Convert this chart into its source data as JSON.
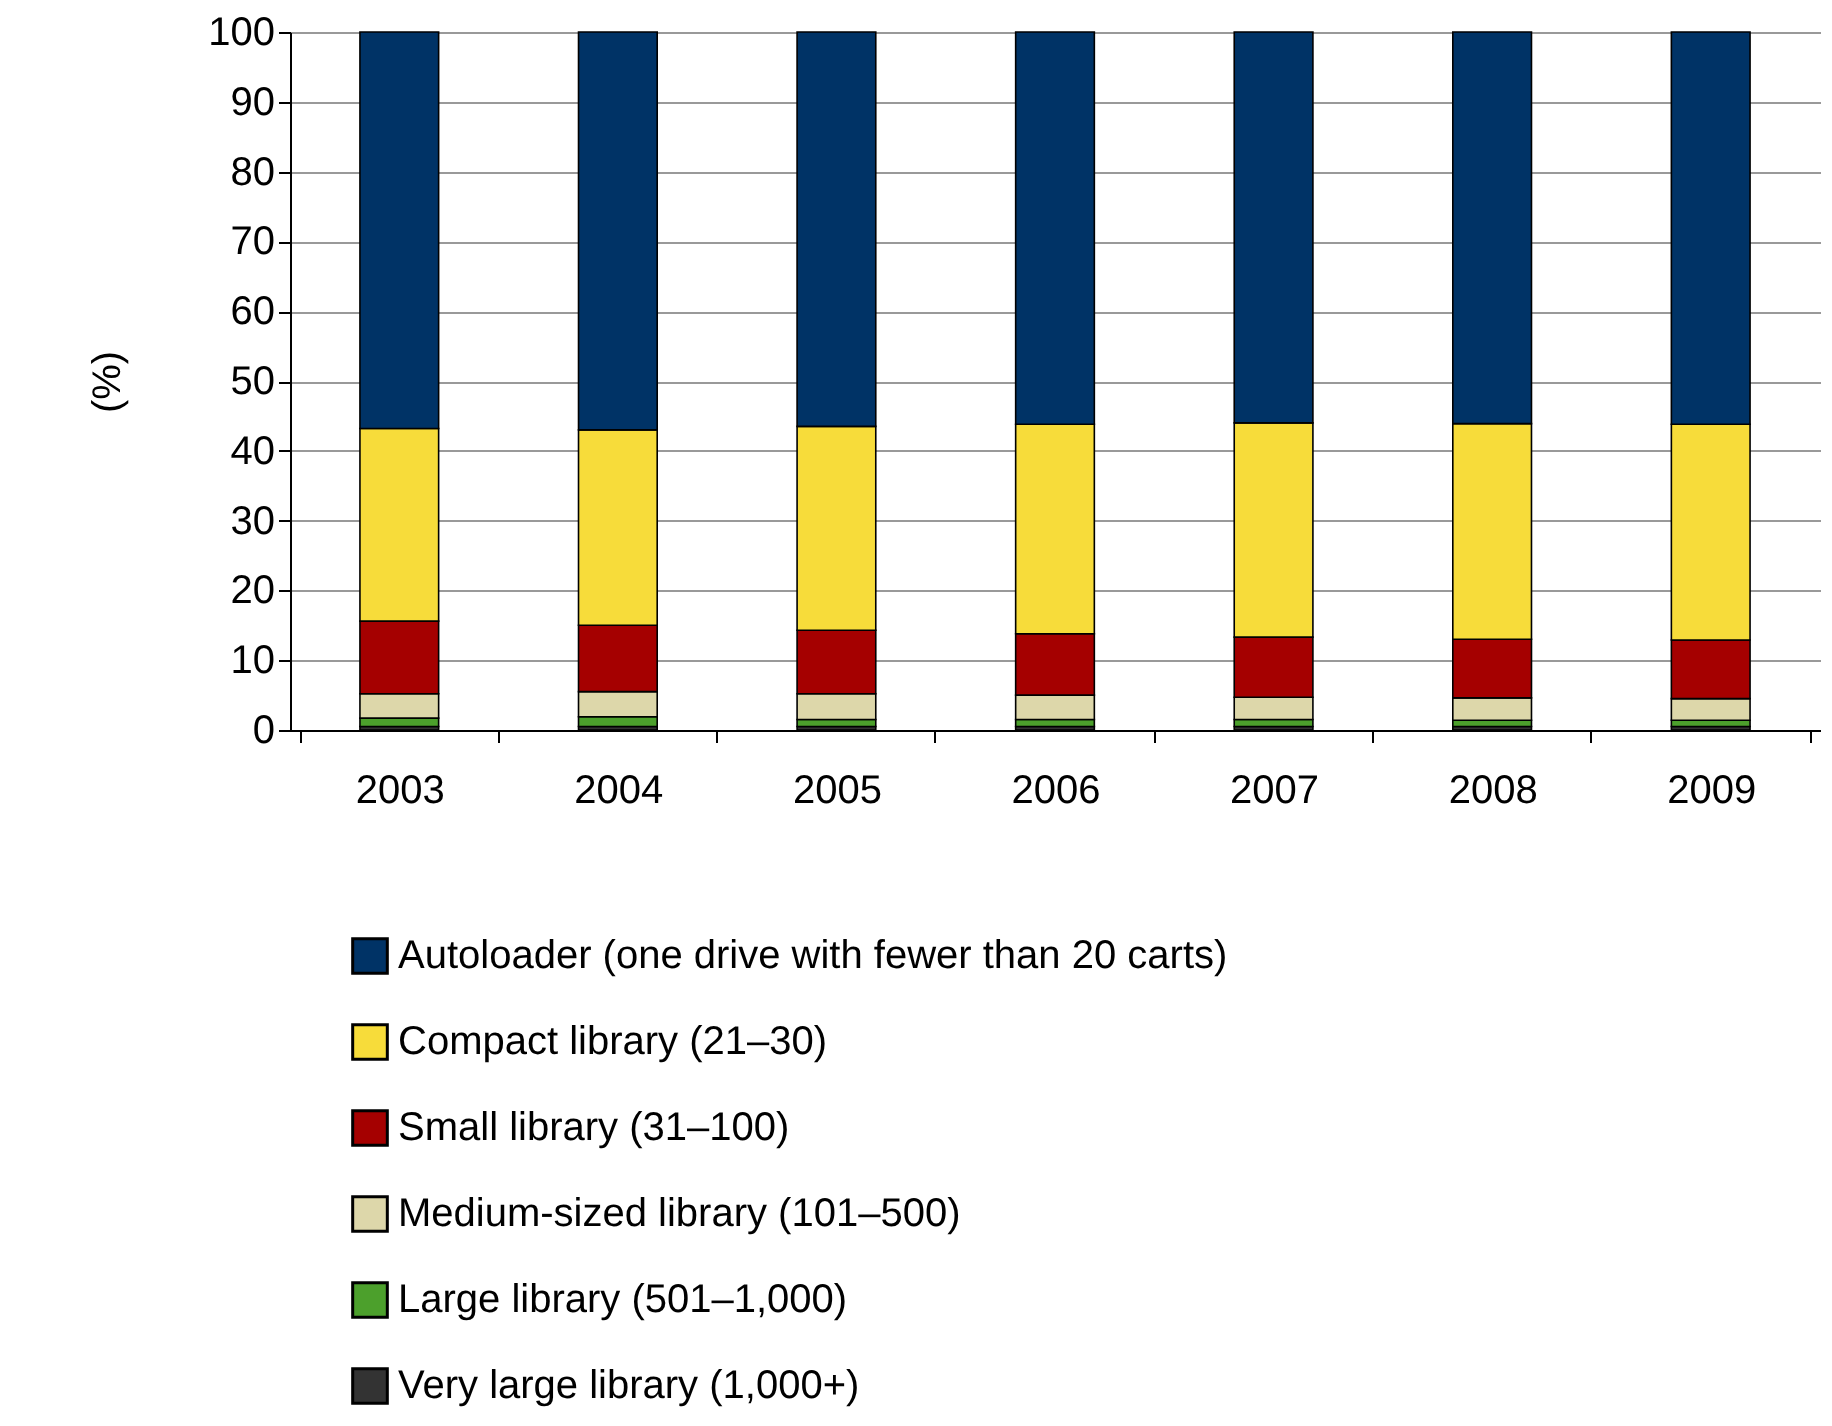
{
  "chart_data": {
    "type": "bar",
    "ylabel": "(%)",
    "stacked": true,
    "categories": [
      "2003",
      "2004",
      "2005",
      "2006",
      "2007",
      "2008",
      "2009"
    ],
    "series": [
      {
        "name": "Very large library (1,000+)",
        "color": "#333333",
        "values": [
          0.5,
          0.5,
          0.5,
          0.5,
          0.5,
          0.5,
          0.5
        ]
      },
      {
        "name": "Large library (501–1,000)",
        "color": "#4ca02c",
        "values": [
          1.2,
          1.4,
          1.0,
          1.0,
          1.0,
          0.9,
          0.9
        ]
      },
      {
        "name": "Medium-sized library (101–500)",
        "color": "#ddd7aa",
        "values": [
          3.5,
          3.6,
          3.7,
          3.5,
          3.2,
          3.2,
          3.1
        ]
      },
      {
        "name": "Small library (31–100)",
        "color": "#a50000",
        "values": [
          10.4,
          9.5,
          9.1,
          8.8,
          8.6,
          8.4,
          8.4
        ]
      },
      {
        "name": "Compact library (21–30)",
        "color": "#f7dc3a",
        "values": [
          27.6,
          28.0,
          29.2,
          30.0,
          30.7,
          30.9,
          30.9
        ]
      },
      {
        "name": "Autoloader (one drive with fewer than 20 carts)",
        "color": "#003366",
        "values": [
          56.8,
          57.0,
          56.5,
          56.2,
          56.0,
          56.1,
          56.2
        ]
      }
    ],
    "ylim": [
      0,
      100
    ],
    "yticks": [
      0,
      10,
      20,
      30,
      40,
      50,
      60,
      70,
      80,
      90,
      100
    ],
    "grid": "y",
    "legend": "bottom"
  }
}
